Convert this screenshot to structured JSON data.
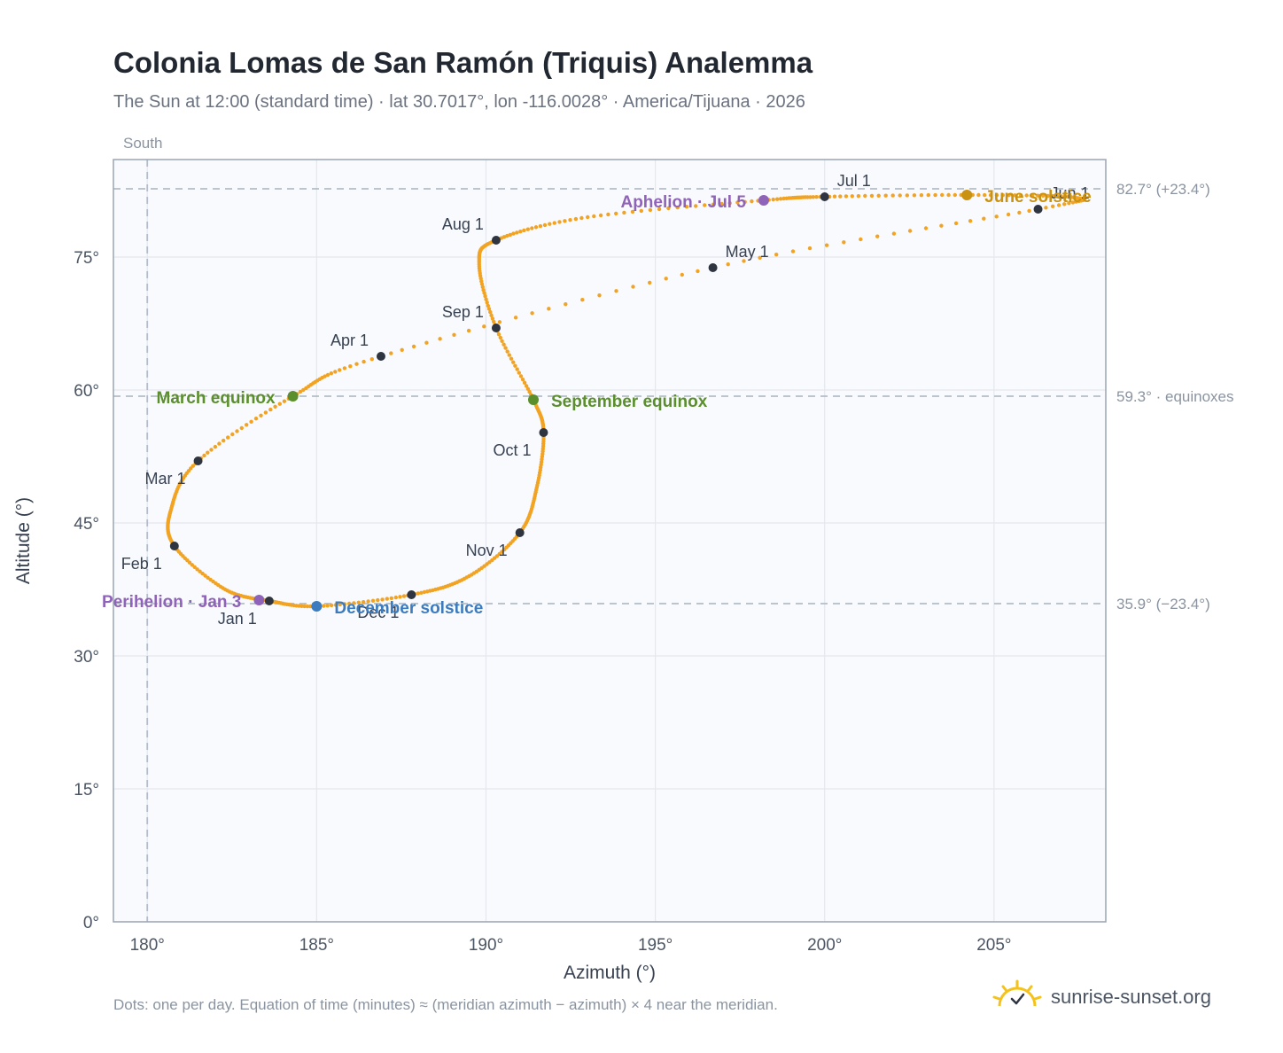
{
  "page": {
    "title": "Colonia Lomas de San Ramón (Triquis) Analemma",
    "subtitle": "The Sun at 12:00 (standard time) · lat 30.7017°, lon -116.0028° · America/Tijuana · 2026",
    "footnote": "Dots: one per day. Equation of time (minutes) ≈ (meridian azimuth − azimuth) × 4 near the meridian.",
    "brand": "sunrise-sunset.org",
    "brand_icon": "sun-logo-icon"
  },
  "chart_data": {
    "type": "scatter",
    "title": "Colonia Lomas de San Ramón (Triquis) Analemma",
    "xlabel": "Azimuth (°)",
    "ylabel": "Altitude (°)",
    "xlim": [
      179,
      208.3
    ],
    "ylim": [
      0,
      86
    ],
    "x_ticks": [
      180,
      185,
      190,
      195,
      200,
      205
    ],
    "x_tick_labels": [
      "180°",
      "185°",
      "190°",
      "195°",
      "200°",
      "205°"
    ],
    "y_ticks": [
      0,
      15,
      30,
      45,
      60,
      75
    ],
    "y_tick_labels": [
      "0°",
      "15°",
      "30°",
      "45°",
      "60°",
      "75°"
    ],
    "grid": true,
    "meridian": {
      "azimuth": 180,
      "label": "South"
    },
    "reference_lines": [
      {
        "altitude": 82.7,
        "label": "82.7° (+23.4°)"
      },
      {
        "altitude": 59.3,
        "label": "59.3° · equinoxes"
      },
      {
        "altitude": 35.9,
        "label": "35.9° (−23.4°)"
      }
    ],
    "path_anchors": [
      {
        "azimuth": 183.6,
        "altitude": 36.2
      },
      {
        "azimuth": 182.3,
        "altitude": 37.5
      },
      {
        "azimuth": 180.8,
        "altitude": 42.4
      },
      {
        "azimuth": 180.7,
        "altitude": 46.5
      },
      {
        "azimuth": 181.5,
        "altitude": 52.0
      },
      {
        "azimuth": 184.3,
        "altitude": 59.3
      },
      {
        "azimuth": 186.9,
        "altitude": 63.8
      },
      {
        "azimuth": 196.7,
        "altitude": 73.8
      },
      {
        "azimuth": 206.3,
        "altitude": 80.4
      },
      {
        "azimuth": 207.4,
        "altitude": 81.7
      },
      {
        "azimuth": 204.2,
        "altitude": 82.0
      },
      {
        "azimuth": 200.0,
        "altitude": 81.8
      },
      {
        "azimuth": 198.2,
        "altitude": 81.4
      },
      {
        "azimuth": 193.0,
        "altitude": 79.5
      },
      {
        "azimuth": 190.3,
        "altitude": 76.9
      },
      {
        "azimuth": 189.8,
        "altitude": 74.2
      },
      {
        "azimuth": 190.3,
        "altitude": 67.0
      },
      {
        "azimuth": 191.4,
        "altitude": 58.9
      },
      {
        "azimuth": 191.7,
        "altitude": 55.2
      },
      {
        "azimuth": 191.5,
        "altitude": 49.0
      },
      {
        "azimuth": 191.0,
        "altitude": 43.9
      },
      {
        "azimuth": 189.5,
        "altitude": 39.0
      },
      {
        "azimuth": 187.8,
        "altitude": 36.9
      },
      {
        "azimuth": 185.0,
        "altitude": 35.6
      },
      {
        "azimuth": 183.6,
        "altitude": 36.2
      }
    ],
    "month_markers": [
      {
        "label": "Jan 1",
        "azimuth": 183.6,
        "altitude": 36.2,
        "label_pos": "below-left"
      },
      {
        "label": "Feb 1",
        "azimuth": 180.8,
        "altitude": 42.4,
        "label_pos": "below-left"
      },
      {
        "label": "Mar 1",
        "azimuth": 181.5,
        "altitude": 52.0,
        "label_pos": "below-left"
      },
      {
        "label": "Apr 1",
        "azimuth": 186.9,
        "altitude": 63.8,
        "label_pos": "above-left"
      },
      {
        "label": "May 1",
        "azimuth": 196.7,
        "altitude": 73.8,
        "label_pos": "above-right"
      },
      {
        "label": "Jun 1",
        "azimuth": 206.3,
        "altitude": 80.4,
        "label_pos": "above-right"
      },
      {
        "label": "Jul 1",
        "azimuth": 200.0,
        "altitude": 81.8,
        "label_pos": "above-right"
      },
      {
        "label": "Aug 1",
        "azimuth": 190.3,
        "altitude": 76.9,
        "label_pos": "above-left"
      },
      {
        "label": "Sep 1",
        "azimuth": 190.3,
        "altitude": 67.0,
        "label_pos": "above-left"
      },
      {
        "label": "Oct 1",
        "azimuth": 191.7,
        "altitude": 55.2,
        "label_pos": "below-left"
      },
      {
        "label": "Nov 1",
        "azimuth": 191.0,
        "altitude": 43.9,
        "label_pos": "below-left"
      },
      {
        "label": "Dec 1",
        "azimuth": 187.8,
        "altitude": 36.9,
        "label_pos": "below-left"
      }
    ],
    "events": [
      {
        "label": "March equinox",
        "azimuth": 184.3,
        "altitude": 59.3,
        "color": "#5b8f2c",
        "label_side": "left"
      },
      {
        "label": "September equinox",
        "azimuth": 191.4,
        "altitude": 58.9,
        "color": "#5b8f2c",
        "label_side": "right"
      },
      {
        "label": "June solstice",
        "azimuth": 204.2,
        "altitude": 82.0,
        "color": "#c99212",
        "label_side": "right"
      },
      {
        "label": "December solstice",
        "azimuth": 185.0,
        "altitude": 35.6,
        "color": "#3c7bbd",
        "label_side": "right"
      },
      {
        "label": "Perihelion · Jan 3",
        "azimuth": 183.3,
        "altitude": 36.3,
        "color": "#8f63b8",
        "label_side": "left"
      },
      {
        "label": "Aphelion · Jul 5",
        "azimuth": 198.2,
        "altitude": 81.4,
        "color": "#8f63b8",
        "label_side": "left"
      }
    ],
    "path_color": "#f2a322",
    "marker_color": "#2f3540"
  }
}
